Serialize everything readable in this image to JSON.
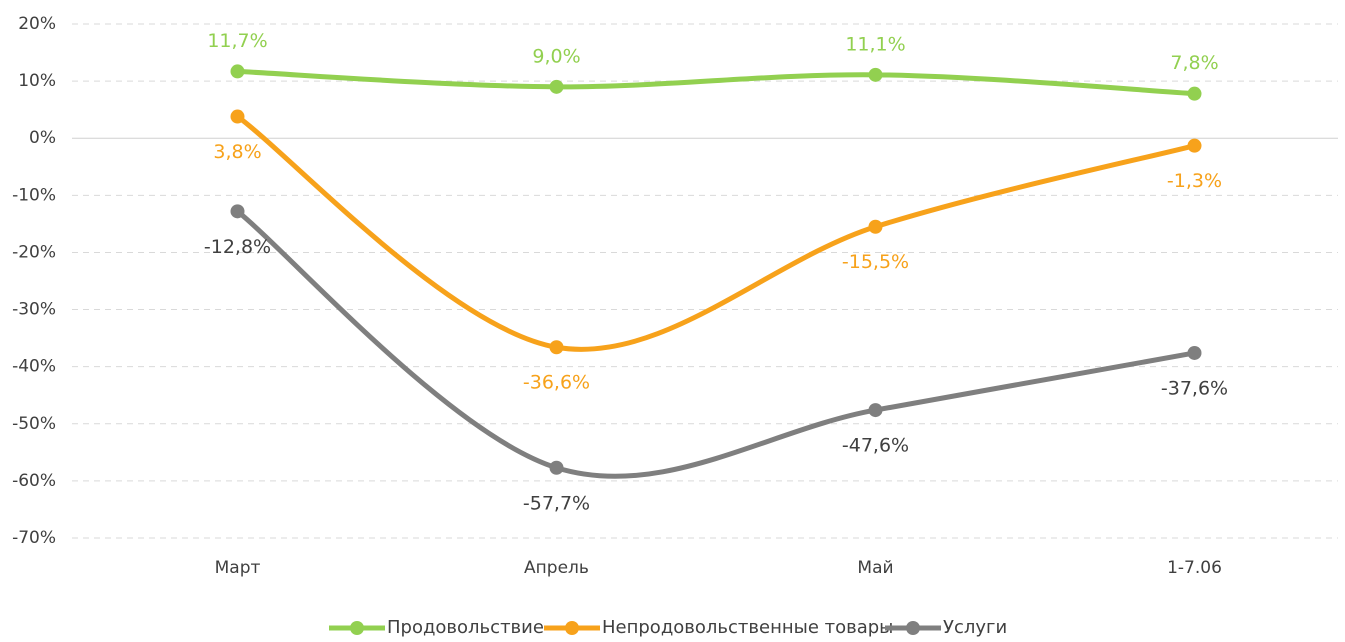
{
  "chart_data": {
    "type": "line",
    "categories": [
      "Март",
      "Апрель",
      "Май",
      "1-7.06"
    ],
    "series": [
      {
        "name": "Продовольствие",
        "color": "#92d050",
        "values": [
          11.7,
          9.0,
          11.1,
          7.8
        ],
        "value_labels": [
          "11,7%",
          "9,0%",
          "11,1%",
          "7,8%"
        ]
      },
      {
        "name": "Непродовольственные товары",
        "color": "#f7a21b",
        "values": [
          3.8,
          -36.6,
          -15.5,
          -1.3
        ],
        "value_labels": [
          "3,8%",
          "-36,6%",
          "-15,5%",
          "-1,3%"
        ]
      },
      {
        "name": "Услуги",
        "color": "#7f7f7f",
        "values": [
          -12.8,
          -57.7,
          -47.6,
          -37.6
        ],
        "value_labels": [
          "-12,8%",
          "-57,7%",
          "-47,6%",
          "-37,6%"
        ]
      }
    ],
    "ylim": [
      -70,
      20
    ],
    "yticks": [
      {
        "value": -70,
        "label": "-70%"
      },
      {
        "value": -60,
        "label": "-60%"
      },
      {
        "value": -50,
        "label": "-50%"
      },
      {
        "value": -40,
        "label": "-40%"
      },
      {
        "value": -30,
        "label": "-30%"
      },
      {
        "value": -20,
        "label": "-20%"
      },
      {
        "value": -10,
        "label": "-10%"
      },
      {
        "value": 0,
        "label": "0%"
      },
      {
        "value": 10,
        "label": "10%"
      },
      {
        "value": 20,
        "label": "20%"
      }
    ],
    "grid": true,
    "smooth": true,
    "legend": "bottom"
  }
}
